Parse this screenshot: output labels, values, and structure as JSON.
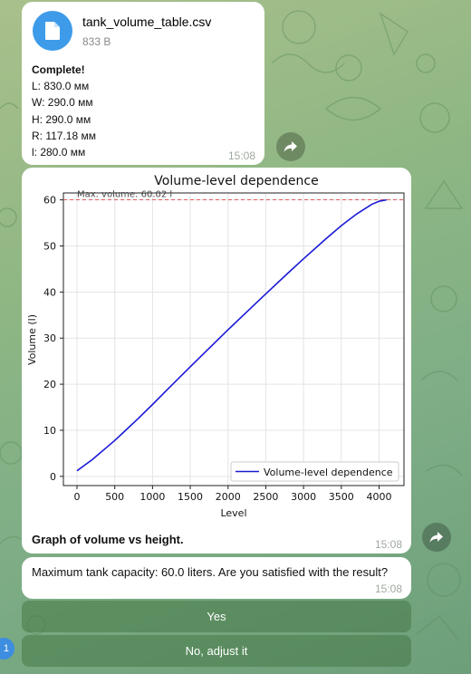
{
  "file_message": {
    "file_name": "tank_volume_table.csv",
    "file_size": "833 B",
    "icon": "document-icon",
    "status_title": "Complete!",
    "params": [
      "L: 830.0 мм",
      "W: 290.0 мм",
      "H: 290.0 мм",
      "R: 117.18 мм",
      "l: 280.0 мм"
    ],
    "time": "15:08"
  },
  "chart_message": {
    "caption": "Graph of volume vs height.",
    "time": "15:08"
  },
  "question_message": {
    "text": "Maximum tank capacity: 60.0 liters. Are you satisfied with the result?",
    "time": "15:08"
  },
  "keyboard": {
    "yes_label": "Yes",
    "adjust_label": "No, adjust it"
  },
  "badge": {
    "text": "1"
  },
  "colors": {
    "accent": "#3d9be9",
    "line": "#1a1ad6",
    "max_line": "#e06060"
  },
  "chart_data": {
    "type": "line",
    "title": "Volume-level dependence",
    "xlabel": "Level",
    "ylabel": "Volume (l)",
    "xlim": [
      -180,
      4330
    ],
    "ylim": [
      -2,
      61.5
    ],
    "xticks": [
      0,
      500,
      1000,
      1500,
      2000,
      2500,
      3000,
      3500,
      4000
    ],
    "yticks": [
      0,
      10,
      20,
      30,
      40,
      50,
      60
    ],
    "grid": true,
    "legend": "bottom-right",
    "series": [
      {
        "name": "Volume-level dependence",
        "x": [
          0,
          100,
          200,
          300,
          400,
          500,
          600,
          800,
          1000,
          1200,
          1500,
          1800,
          2000,
          2300,
          2500,
          2800,
          3000,
          3300,
          3500,
          3700,
          3900,
          4000,
          4100
        ],
        "y": [
          1.2,
          2.4,
          3.6,
          5.0,
          6.4,
          7.8,
          9.3,
          12.4,
          15.6,
          18.9,
          23.8,
          28.6,
          31.8,
          36.5,
          39.6,
          44.2,
          47.2,
          51.6,
          54.4,
          56.9,
          59.0,
          59.7,
          60.0
        ]
      }
    ],
    "annotations": [
      {
        "type": "hline",
        "y": 60.02,
        "label": "Max. volume: 60.02 l"
      }
    ]
  }
}
